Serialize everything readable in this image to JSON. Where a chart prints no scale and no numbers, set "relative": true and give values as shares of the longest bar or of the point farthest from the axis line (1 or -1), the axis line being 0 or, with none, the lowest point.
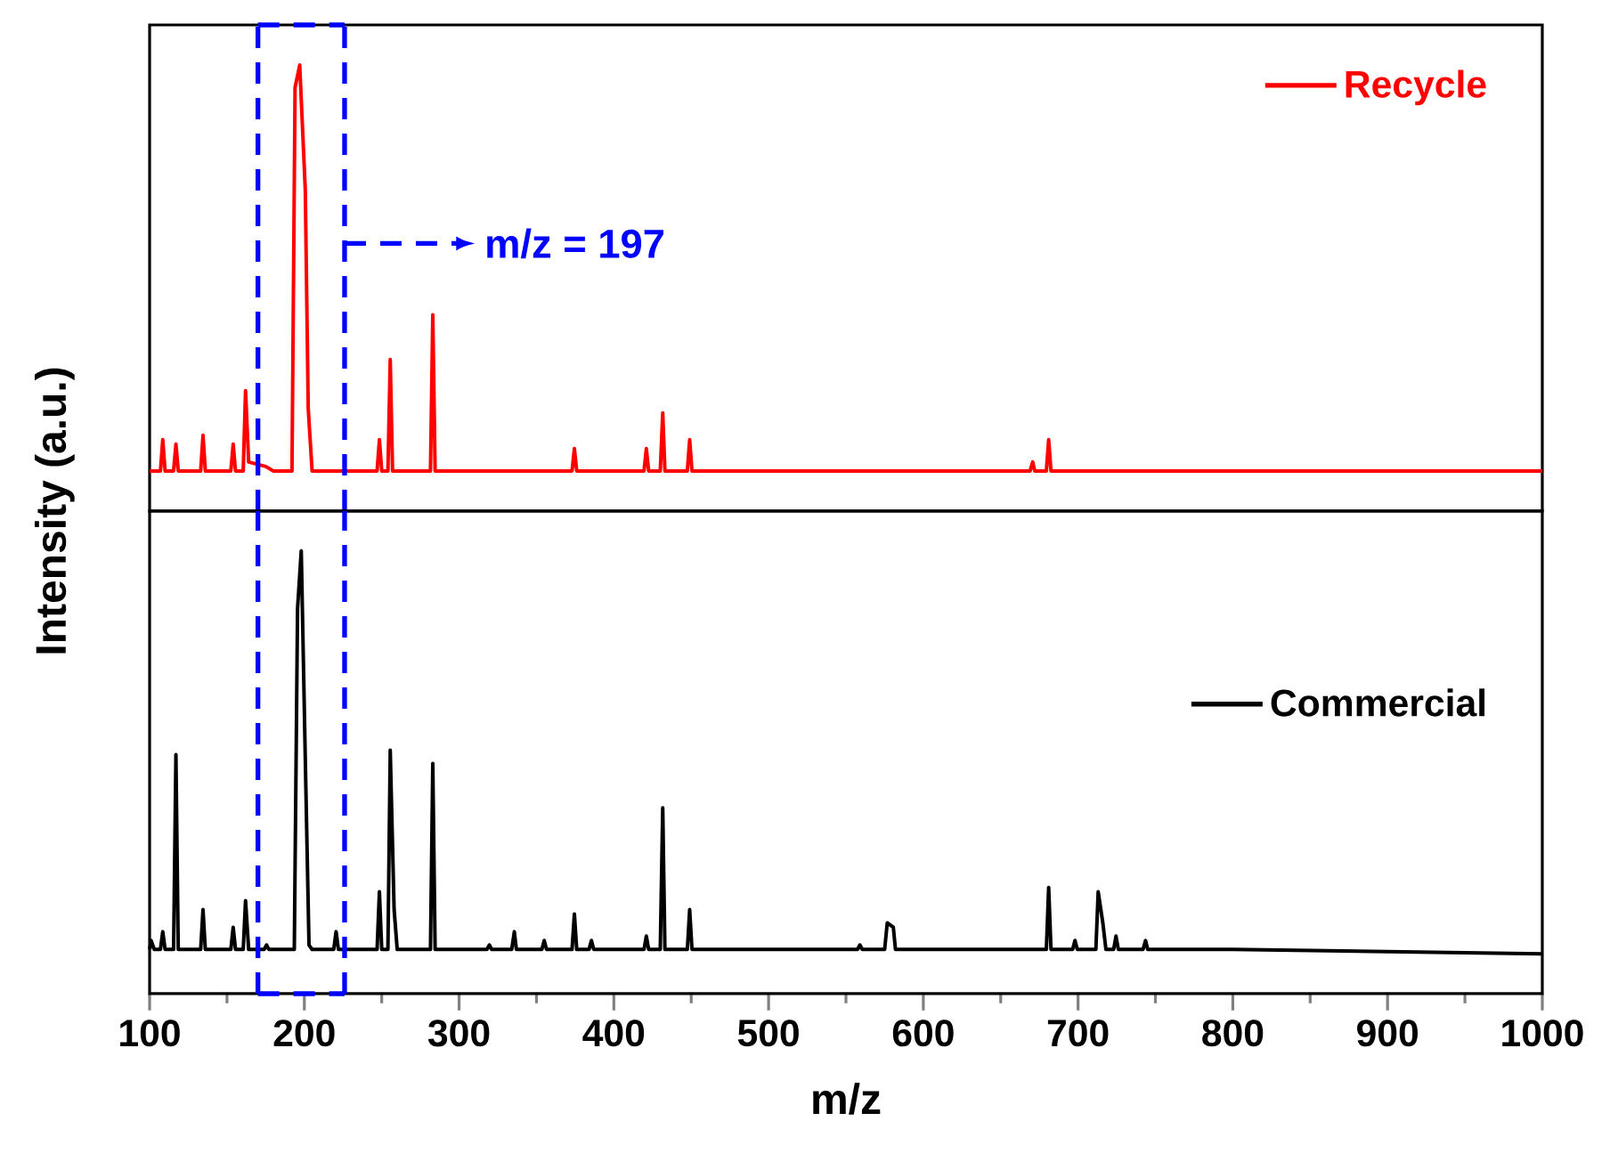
{
  "chart_data": [
    {
      "type": "line",
      "relative": true,
      "ylabel": "Intensity (a.u.)",
      "xlim": [
        100,
        1000
      ],
      "xticks": [
        100,
        200,
        300,
        400,
        500,
        600,
        700,
        800,
        900,
        1000
      ],
      "tick_labels": false,
      "legend": "top right",
      "marker": "none",
      "line_style": "solid",
      "ref_lines": [
        {
          "axis": "x",
          "value": 170,
          "color": "#0000ff",
          "line_style": "dashed"
        },
        {
          "axis": "x",
          "value": 226,
          "color": "#0000ff",
          "line_style": "dashed"
        }
      ],
      "annotations": [
        "m/z = 197"
      ],
      "series": [
        {
          "name": "Recycle",
          "color": "#ff0000",
          "x": [
            100,
            107,
            108.5,
            110,
            115.5,
            117,
            118.5,
            133,
            134.5,
            136,
            152.5,
            154,
            155.5,
            160.5,
            162,
            164,
            175,
            180,
            192,
            194,
            197,
            200.6,
            202.5,
            205,
            247,
            248.5,
            250,
            254,
            255.5,
            257,
            281.5,
            283,
            284.5,
            373,
            374.5,
            376,
            419.5,
            421,
            422.5,
            430,
            431.6,
            433,
            447.5,
            449,
            450.5,
            669,
            670.7,
            672,
            679.5,
            681,
            682.5,
            1000
          ],
          "values": [
            0.09,
            0.09,
            0.16,
            0.09,
            0.09,
            0.15,
            0.09,
            0.09,
            0.17,
            0.09,
            0.09,
            0.15,
            0.09,
            0.09,
            0.27,
            0.11,
            0.1,
            0.09,
            0.09,
            0.95,
            1.0,
            0.72,
            0.23,
            0.09,
            0.09,
            0.16,
            0.09,
            0.09,
            0.34,
            0.09,
            0.09,
            0.44,
            0.09,
            0.09,
            0.14,
            0.09,
            0.09,
            0.14,
            0.09,
            0.09,
            0.22,
            0.09,
            0.09,
            0.16,
            0.09,
            0.09,
            0.11,
            0.09,
            0.09,
            0.16,
            0.09,
            0.09
          ]
        }
      ]
    },
    {
      "type": "line",
      "relative": true,
      "xlabel": "m/z",
      "xlim": [
        100,
        1000
      ],
      "xticks": [
        100,
        200,
        300,
        400,
        500,
        600,
        700,
        800,
        900,
        1000
      ],
      "tick_labels": "x",
      "legend": "right",
      "marker": "none",
      "line_style": "solid",
      "ref_lines": [
        {
          "axis": "x",
          "value": 170,
          "color": "#0000ff",
          "line_style": "dashed"
        },
        {
          "axis": "x",
          "value": 226,
          "color": "#0000ff",
          "line_style": "dashed"
        }
      ],
      "series": [
        {
          "name": "Commercial",
          "color": "#000000",
          "x": [
            100,
            101,
            103,
            107,
            108.5,
            110,
            115.5,
            117,
            118.5,
            133,
            134.5,
            136,
            152.5,
            154,
            155.5,
            160.5,
            162,
            164,
            174,
            175.6,
            177,
            193.5,
            195.6,
            198,
            200.6,
            203,
            205,
            219,
            220.5,
            222,
            247,
            248.5,
            250,
            254,
            255.5,
            258,
            260,
            281.5,
            283,
            284.5,
            318,
            319.6,
            321,
            334,
            335.7,
            337,
            353.5,
            355,
            356.5,
            373,
            374.5,
            376,
            384,
            385.5,
            387,
            419.5,
            421,
            422.5,
            430,
            431.6,
            433,
            447.5,
            449,
            450.5,
            557.5,
            559,
            560.5,
            575,
            576.7,
            580.6,
            582,
            679.5,
            681,
            682.5,
            696.5,
            698,
            699.5,
            711.5,
            713,
            716,
            718,
            723,
            724.5,
            726,
            742,
            743.6,
            745,
            800,
            1000
          ],
          "values": [
            0.1,
            0.12,
            0.1,
            0.1,
            0.14,
            0.1,
            0.1,
            0.54,
            0.1,
            0.1,
            0.19,
            0.1,
            0.1,
            0.15,
            0.1,
            0.1,
            0.21,
            0.1,
            0.1,
            0.11,
            0.1,
            0.1,
            0.87,
            1.0,
            0.53,
            0.11,
            0.1,
            0.1,
            0.14,
            0.1,
            0.1,
            0.23,
            0.1,
            0.1,
            0.55,
            0.19,
            0.1,
            0.1,
            0.52,
            0.1,
            0.1,
            0.11,
            0.1,
            0.1,
            0.14,
            0.1,
            0.1,
            0.12,
            0.1,
            0.1,
            0.18,
            0.1,
            0.1,
            0.12,
            0.1,
            0.1,
            0.13,
            0.1,
            0.1,
            0.42,
            0.1,
            0.1,
            0.19,
            0.1,
            0.1,
            0.11,
            0.1,
            0.1,
            0.16,
            0.15,
            0.1,
            0.1,
            0.24,
            0.1,
            0.1,
            0.12,
            0.1,
            0.1,
            0.23,
            0.16,
            0.1,
            0.1,
            0.13,
            0.1,
            0.1,
            0.12,
            0.1,
            0.1,
            0.09
          ]
        }
      ]
    }
  ]
}
